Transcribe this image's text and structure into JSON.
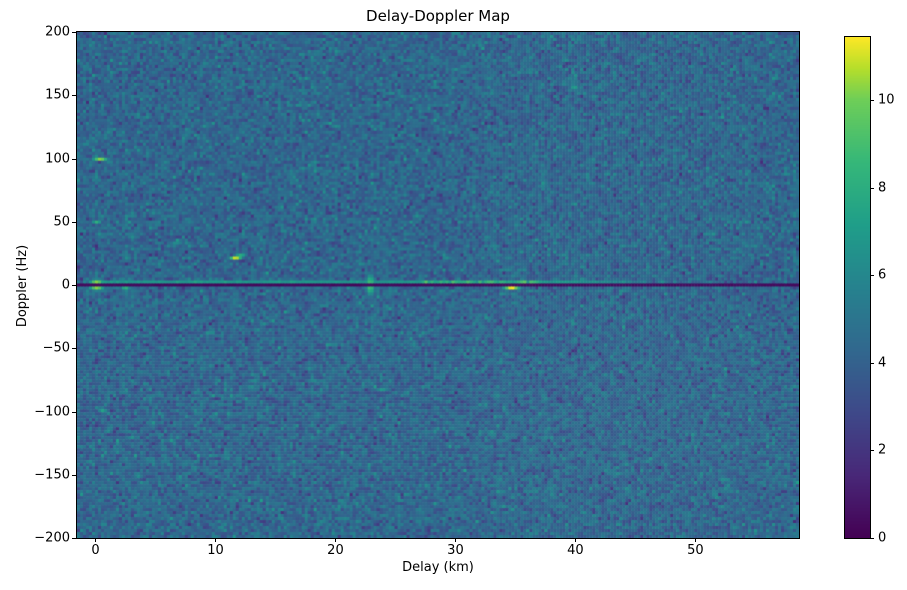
{
  "chart_data": {
    "type": "heatmap",
    "title": "Delay-Doppler Map",
    "xlabel": "Delay (km)",
    "ylabel": "Doppler (Hz)",
    "colormap": "viridis",
    "x_range": [
      -1.54,
      58.63
    ],
    "y_range": [
      -200,
      200
    ],
    "x_ticks": [
      0,
      10,
      20,
      30,
      40,
      50
    ],
    "x_tick_labels": [
      "0",
      "10",
      "20",
      "30",
      "40",
      "50"
    ],
    "y_ticks": [
      200,
      150,
      100,
      50,
      0,
      -50,
      -100,
      -150,
      -200
    ],
    "y_tick_labels": [
      "200",
      "150",
      "100",
      "50",
      "0",
      "−50",
      "−100",
      "−150",
      "−200"
    ],
    "colorbar": {
      "min": 0,
      "max": 11.45,
      "ticks": [
        0,
        2,
        4,
        6,
        8,
        10
      ],
      "tick_labels": [
        "0",
        "2",
        "4",
        "6",
        "8",
        "10"
      ]
    },
    "background_noise": {
      "mean": 4.3,
      "std": 0.8,
      "clip_min": 1.6,
      "clip_max": 7.4,
      "seed": 42
    },
    "zero_doppler_line": {
      "doppler_hz": 0,
      "value": 0.2,
      "half_width_hz": 1.2
    },
    "sidelobe_streak": {
      "doppler_hz": 2.4,
      "delay_start_km": -0.6,
      "delay_end_km": 46,
      "base_value": 6.4,
      "bright_start_km": 27,
      "bright_end_km": 37,
      "bright_boost": 2.6,
      "fade_start_km": 40
    },
    "features": [
      {
        "name": "direct-path-blob",
        "delay_km": 0.1,
        "doppler_hz": 0,
        "sigma_delay_km": 0.55,
        "sigma_doppler_hz": 3.5,
        "amplitude": 11.4,
        "tilt_km_per_hz": 0
      },
      {
        "name": "near-echo-dot",
        "delay_km": 2.5,
        "doppler_hz": -2,
        "sigma_delay_km": 0.35,
        "sigma_doppler_hz": 2.0,
        "amplitude": 7.3,
        "tilt_km_per_hz": 0
      },
      {
        "name": "ambiguity-plus100hz",
        "delay_km": 0.4,
        "doppler_hz": 100,
        "sigma_delay_km": 0.55,
        "sigma_doppler_hz": 1.1,
        "amplitude": 10.6,
        "tilt_km_per_hz": 0
      },
      {
        "name": "ambiguity-plus50hz",
        "delay_km": 0.1,
        "doppler_hz": 50,
        "sigma_delay_km": 0.35,
        "sigma_doppler_hz": 1.4,
        "amplitude": 7.2,
        "tilt_km_per_hz": 0
      },
      {
        "name": "ambiguity-minus100hz",
        "delay_km": 0.6,
        "doppler_hz": -100,
        "sigma_delay_km": 0.35,
        "sigma_doppler_hz": 1.4,
        "amplitude": 6.8,
        "tilt_km_per_hz": 0
      },
      {
        "name": "target-12km-22hz",
        "delay_km": 11.8,
        "doppler_hz": 22,
        "sigma_delay_km": 0.45,
        "sigma_doppler_hz": 1.7,
        "amplitude": 10.9,
        "tilt_km_per_hz": 0.18
      },
      {
        "name": "vertical-smear-23km",
        "delay_km": 22.9,
        "doppler_hz": 0,
        "sigma_delay_km": 0.33,
        "sigma_doppler_hz": 7.5,
        "amplitude": 8.3,
        "tilt_km_per_hz": 0
      },
      {
        "name": "target-35km",
        "delay_km": 34.7,
        "doppler_hz": -2.3,
        "sigma_delay_km": 0.6,
        "sigma_doppler_hz": 1.1,
        "amplitude": 10.4,
        "tilt_km_per_hz": 0
      }
    ],
    "viridis_stops": [
      [
        0.0,
        68,
        1,
        84
      ],
      [
        0.125,
        72,
        40,
        120
      ],
      [
        0.25,
        62,
        73,
        137
      ],
      [
        0.375,
        49,
        104,
        142
      ],
      [
        0.5,
        38,
        130,
        142
      ],
      [
        0.625,
        31,
        158,
        137
      ],
      [
        0.75,
        53,
        183,
        121
      ],
      [
        0.875,
        110,
        206,
        88
      ],
      [
        0.9375,
        181,
        222,
        43
      ],
      [
        1.0,
        253,
        231,
        37
      ]
    ]
  }
}
